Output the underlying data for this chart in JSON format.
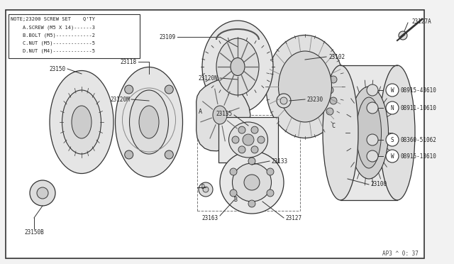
{
  "bg_color": "#f2f2f2",
  "border_color": "#333333",
  "line_color": "#333333",
  "white": "#ffffff",
  "note_lines": [
    "NOTE;23200 SCREW SET    Q’TY",
    "    A.SCREW (M5 X 14)------3",
    "    B.BOLT (M5)------------2",
    "    C.NUT (M5)-------------5",
    "    D.NUT (M4)-------------5"
  ],
  "footer": "AP3 ^ 0: 37",
  "figsize": [
    6.4,
    3.72
  ],
  "dpi": 100
}
